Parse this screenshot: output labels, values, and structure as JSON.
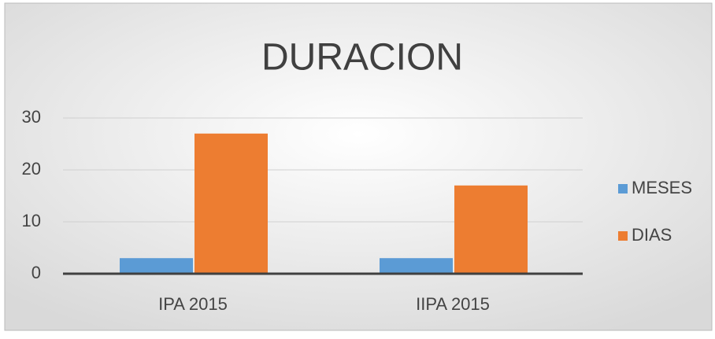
{
  "chart_data": {
    "type": "bar",
    "title": "DURACION",
    "categories": [
      "IPA 2015",
      "IIPA 2015"
    ],
    "series": [
      {
        "name": "MESES",
        "color": "#5b9bd5",
        "values": [
          3,
          3
        ]
      },
      {
        "name": "DIAS",
        "color": "#ed7d31",
        "values": [
          27,
          17
        ]
      }
    ],
    "ylim": [
      0,
      30
    ],
    "yticks": [
      0,
      10,
      20,
      30
    ],
    "grid": true,
    "legend": "right"
  }
}
